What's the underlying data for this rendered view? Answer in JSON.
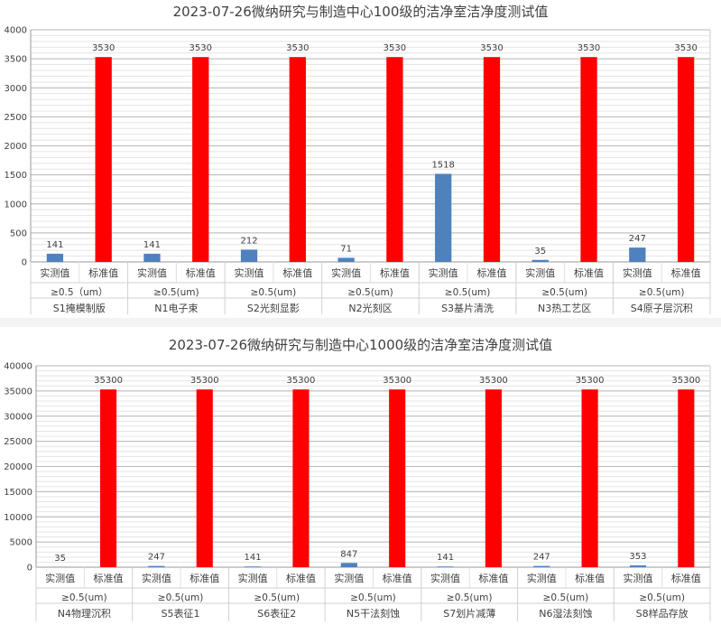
{
  "chart_data": [
    {
      "type": "bar",
      "title": "2023-07-26微纳研究与制造中心100级的洁净室洁净度测试值",
      "ylim": [
        0,
        4000
      ],
      "yticks": [
        0,
        500,
        1000,
        1500,
        2000,
        2500,
        3000,
        3500,
        4000
      ],
      "grid": true,
      "bar_labels": [
        "实测值",
        "标准值"
      ],
      "groups": [
        {
          "size": "≥0.5（um）",
          "location": "S1掩模制版",
          "values": [
            141,
            3530
          ]
        },
        {
          "size": "≥0.5(um)",
          "location": "N1电子束",
          "values": [
            141,
            3530
          ]
        },
        {
          "size": "≥0.5(um)",
          "location": "S2光刻显影",
          "values": [
            212,
            3530
          ]
        },
        {
          "size": "≥0.5(um)",
          "location": "N2光刻区",
          "values": [
            71,
            3530
          ]
        },
        {
          "size": "≥0.5(um)",
          "location": "S3基片清洗",
          "values": [
            1518,
            3530
          ]
        },
        {
          "size": "≥0.5(um)",
          "location": "N3热工艺区",
          "values": [
            35,
            3530
          ]
        },
        {
          "size": "≥0.5(um)",
          "location": "S4原子层沉积",
          "values": [
            247,
            3530
          ]
        }
      ],
      "colors": {
        "measured": "#4f81bd",
        "standard": "#ff0000"
      }
    },
    {
      "type": "bar",
      "title": "2023-07-26微纳研究与制造中心1000级的洁净室洁净度测试值",
      "ylim": [
        0,
        40000
      ],
      "yticks": [
        0,
        5000,
        10000,
        15000,
        20000,
        25000,
        30000,
        35000,
        40000
      ],
      "grid": true,
      "bar_labels": [
        "实测值",
        "标准值"
      ],
      "groups": [
        {
          "size": "≥0.5(um)",
          "location": "N4物理沉积",
          "values": [
            35,
            35300
          ]
        },
        {
          "size": "≥0.5(um)",
          "location": "S5表征1",
          "values": [
            247,
            35300
          ]
        },
        {
          "size": "≥0.5(um)",
          "location": "S6表征2",
          "values": [
            141,
            35300
          ]
        },
        {
          "size": "≥0.5(um)",
          "location": "N5干法刻蚀",
          "values": [
            847,
            35300
          ]
        },
        {
          "size": "≥0.5(um)",
          "location": "S7划片减薄",
          "values": [
            141,
            35300
          ]
        },
        {
          "size": "≥0.5(um)",
          "location": "N6湿法刻蚀",
          "values": [
            247,
            35300
          ]
        },
        {
          "size": "≥0.5(um)",
          "location": "S8样品存放",
          "values": [
            353,
            35300
          ]
        }
      ],
      "colors": {
        "measured": "#4f81bd",
        "standard": "#ff0000"
      }
    }
  ]
}
